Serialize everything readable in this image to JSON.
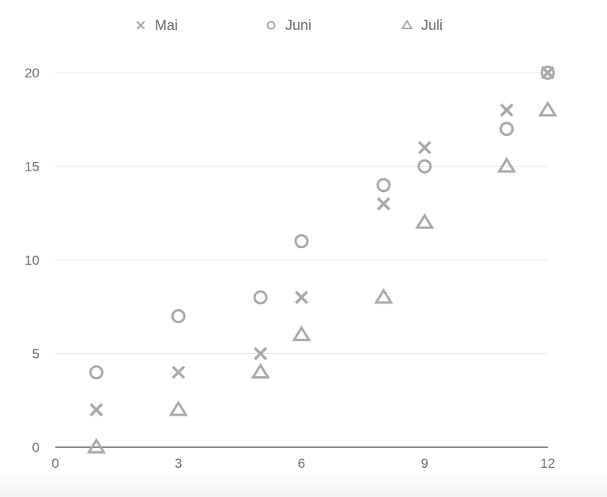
{
  "chart_data": {
    "type": "scatter",
    "title": "",
    "xlabel": "",
    "ylabel": "",
    "xlim": [
      0,
      12
    ],
    "ylim": [
      0,
      20
    ],
    "x_ticks": [
      0,
      3,
      6,
      9,
      12
    ],
    "y_ticks": [
      0,
      5,
      10,
      15,
      20
    ],
    "grid": "horizontal",
    "legend_position": "top",
    "marker_color": "#a9a9a9",
    "series": [
      {
        "name": "Mai",
        "marker": "cross",
        "points": [
          [
            1,
            2
          ],
          [
            3,
            4
          ],
          [
            5,
            5
          ],
          [
            6,
            8
          ],
          [
            8,
            13
          ],
          [
            9,
            16
          ],
          [
            11,
            18
          ],
          [
            12,
            20
          ]
        ]
      },
      {
        "name": "Juni",
        "marker": "circle",
        "points": [
          [
            1,
            4
          ],
          [
            3,
            7
          ],
          [
            5,
            8
          ],
          [
            6,
            11
          ],
          [
            8,
            14
          ],
          [
            9,
            15
          ],
          [
            11,
            17
          ],
          [
            12,
            20
          ]
        ]
      },
      {
        "name": "Juli",
        "marker": "triangle",
        "points": [
          [
            1,
            0
          ],
          [
            3,
            2
          ],
          [
            5,
            4
          ],
          [
            6,
            6
          ],
          [
            8,
            8
          ],
          [
            9,
            12
          ],
          [
            11,
            15
          ],
          [
            12,
            18
          ]
        ]
      }
    ]
  }
}
